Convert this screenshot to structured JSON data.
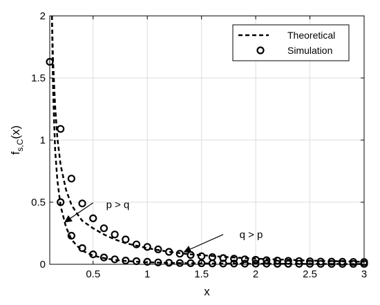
{
  "chart_data": {
    "type": "line",
    "xlabel": "x",
    "ylabel": "f",
    "ylabel_sub": "s,C",
    "ylabel_arg": "(x)",
    "xlim": [
      0.1,
      3
    ],
    "ylim": [
      0,
      2
    ],
    "xticks": [
      0.5,
      1,
      1.5,
      2,
      2.5,
      3
    ],
    "xtick_labels": [
      "0.5",
      "1",
      "1.5",
      "2",
      "2.5",
      "3"
    ],
    "yticks": [
      0,
      0.5,
      1,
      1.5,
      2
    ],
    "ytick_labels": [
      "0",
      "0.5",
      "1",
      "1.5",
      "2"
    ],
    "grid": true,
    "legend_position": "top-right",
    "legend": [
      {
        "label": "Theoretical",
        "style": "dashed-line"
      },
      {
        "label": "Simulation",
        "style": "circle-marker"
      }
    ],
    "series": [
      {
        "name": "Theoretical",
        "case": "p > q",
        "style": "dashed",
        "x": [
          0.12,
          0.13,
          0.14,
          0.15,
          0.17,
          0.2,
          0.25,
          0.3,
          0.35,
          0.4,
          0.5,
          0.6,
          0.7,
          0.8,
          1.0,
          1.2,
          1.5,
          2.0,
          2.5,
          3.0
        ],
        "y": [
          2.0,
          1.45,
          1.15,
          0.92,
          0.68,
          0.47,
          0.3,
          0.2,
          0.15,
          0.11,
          0.07,
          0.05,
          0.035,
          0.027,
          0.016,
          0.011,
          0.007,
          0.004,
          0.003,
          0.002
        ]
      },
      {
        "name": "Theoretical",
        "case": "q > p",
        "style": "dashed",
        "x": [
          0.12,
          0.13,
          0.14,
          0.15,
          0.17,
          0.2,
          0.25,
          0.3,
          0.35,
          0.4,
          0.5,
          0.6,
          0.7,
          0.8,
          1.0,
          1.2,
          1.4,
          1.7,
          2.0,
          2.5,
          3.0
        ],
        "y": [
          2.0,
          1.65,
          1.45,
          1.27,
          1.02,
          0.8,
          0.6,
          0.48,
          0.41,
          0.35,
          0.29,
          0.24,
          0.2,
          0.17,
          0.13,
          0.1,
          0.08,
          0.06,
          0.045,
          0.03,
          0.02
        ]
      },
      {
        "name": "Simulation",
        "case": "p > q",
        "style": "markers",
        "x": [
          0.1,
          0.2,
          0.3,
          0.4,
          0.5,
          0.6,
          0.7,
          0.8,
          0.9,
          1.0,
          1.1,
          1.2,
          1.3,
          1.4,
          1.5,
          1.6,
          1.7,
          1.8,
          1.9,
          2.0,
          2.1,
          2.2,
          2.3,
          2.4,
          2.5,
          2.6,
          2.7,
          2.8,
          2.9,
          3.0
        ],
        "y": [
          1.63,
          0.5,
          0.23,
          0.13,
          0.08,
          0.055,
          0.04,
          0.03,
          0.025,
          0.02,
          0.015,
          0.012,
          0.01,
          0.009,
          0.008,
          0.007,
          0.006,
          0.006,
          0.005,
          0.005,
          0.005,
          0.004,
          0.004,
          0.004,
          0.004,
          0.003,
          0.003,
          0.003,
          0.003,
          0.003
        ]
      },
      {
        "name": "Simulation",
        "case": "q > p",
        "style": "markers",
        "x": [
          0.2,
          0.3,
          0.4,
          0.5,
          0.6,
          0.7,
          0.8,
          0.9,
          1.0,
          1.1,
          1.2,
          1.3,
          1.4,
          1.5,
          1.6,
          1.7,
          1.8,
          1.9,
          2.0,
          2.1,
          2.2,
          2.3,
          2.4,
          2.5,
          2.6,
          2.7,
          2.8,
          2.9,
          3.0
        ],
        "y": [
          1.09,
          0.69,
          0.49,
          0.37,
          0.29,
          0.24,
          0.2,
          0.16,
          0.14,
          0.12,
          0.1,
          0.085,
          0.075,
          0.065,
          0.058,
          0.05,
          0.045,
          0.04,
          0.036,
          0.033,
          0.03,
          0.028,
          0.026,
          0.024,
          0.022,
          0.021,
          0.02,
          0.019,
          0.018
        ]
      }
    ],
    "annotations": [
      {
        "text": "p > q",
        "label_at": [
          0.62,
          0.48
        ],
        "arrow_from": [
          0.5,
          0.495
        ],
        "arrow_to": [
          0.24,
          0.34
        ]
      },
      {
        "text": "q > p",
        "label_at": [
          1.85,
          0.24
        ],
        "arrow_from": [
          1.7,
          0.24
        ],
        "arrow_to": [
          1.34,
          0.1
        ]
      }
    ]
  }
}
